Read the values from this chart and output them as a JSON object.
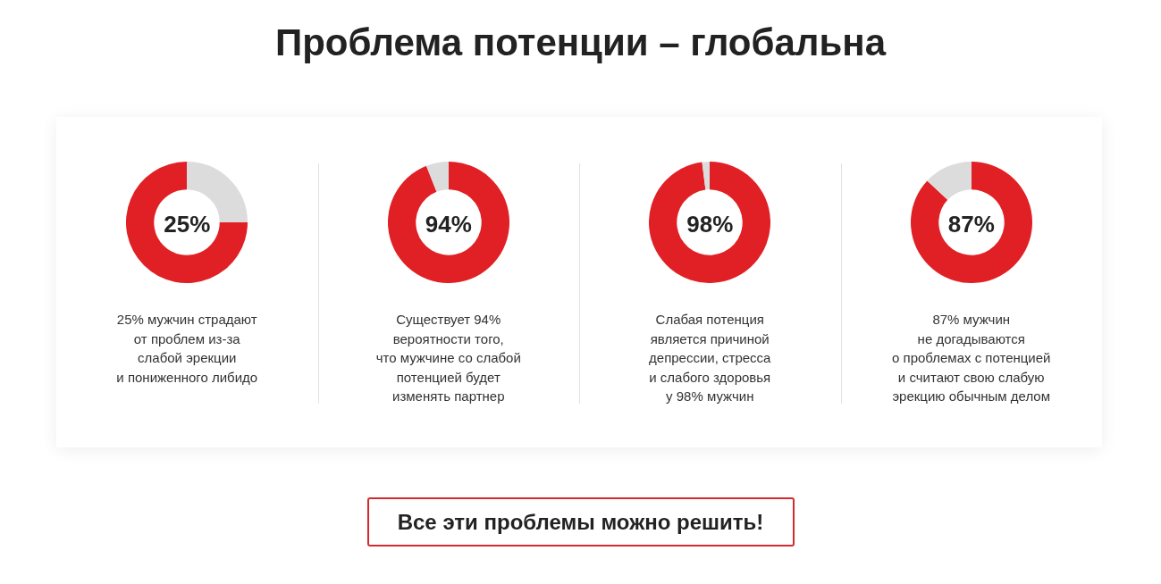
{
  "chart_data": [
    {
      "type": "other",
      "title": "Проблема потенции – глобальна"
    },
    {
      "type": "donut",
      "categories": [
        null,
        null
      ],
      "values": [
        25,
        75
      ],
      "colors": [
        "#dcdcdc",
        "#e02024"
      ],
      "annotations": [
        "25%",
        "25% мужчин страдают\nот проблем из-за\nслабой эрекции\nи пониженного либидо"
      ]
    },
    {
      "type": "donut",
      "categories": [
        null,
        null
      ],
      "values": [
        94,
        6
      ],
      "colors": [
        "#e02024",
        "#dcdcdc"
      ],
      "annotations": [
        "94%",
        "Существует 94%\nвероятности того,\nчто мужчине со слабой\nпотенцией будет\nизменять партнер"
      ]
    },
    {
      "type": "donut",
      "categories": [
        null,
        null
      ],
      "values": [
        98,
        2
      ],
      "colors": [
        "#e02024",
        "#dcdcdc"
      ],
      "annotations": [
        "98%",
        "Слабая потенция\nявляется причиной\nдепрессии, стресса\nи слабого здоровья\nу 98% мужчин"
      ]
    },
    {
      "type": "donut",
      "categories": [
        null,
        null
      ],
      "values": [
        87,
        13
      ],
      "colors": [
        "#e02024",
        "#dcdcdc"
      ],
      "annotations": [
        "87%",
        "87% мужчин\nне догадываются\nо проблемах с потенцией\nи считают свою слабую\nэрекцию обычным делом"
      ]
    },
    {
      "type": "other",
      "annotations": [
        "Все эти проблемы можно решить!"
      ]
    }
  ]
}
